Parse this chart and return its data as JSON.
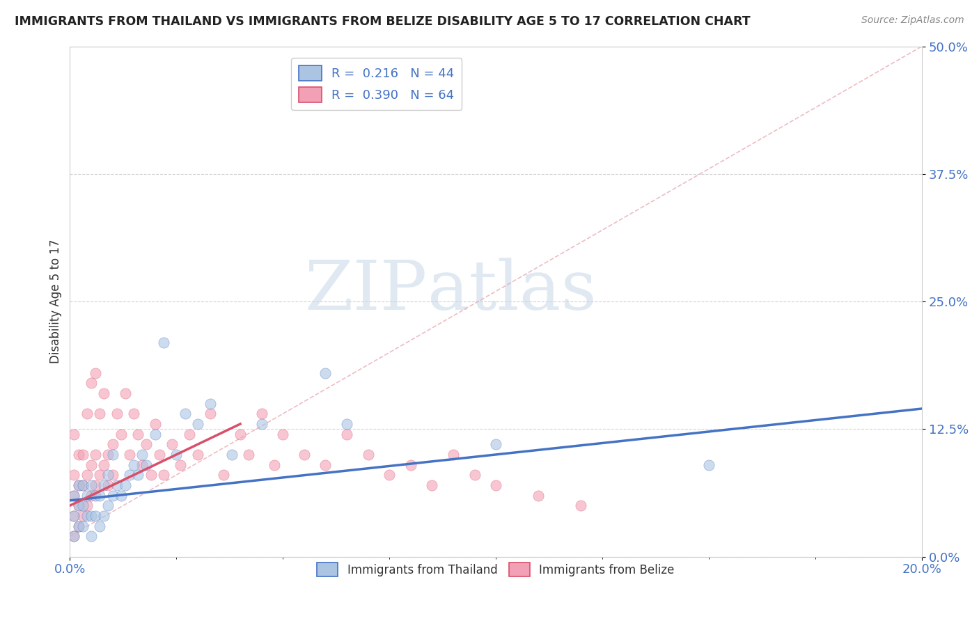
{
  "title": "IMMIGRANTS FROM THAILAND VS IMMIGRANTS FROM BELIZE DISABILITY AGE 5 TO 17 CORRELATION CHART",
  "source": "Source: ZipAtlas.com",
  "ylabel": "Disability Age 5 to 17",
  "xlim": [
    0.0,
    0.2
  ],
  "ylim": [
    0.0,
    0.5
  ],
  "ytick_labels": [
    "0.0%",
    "12.5%",
    "25.0%",
    "37.5%",
    "50.0%"
  ],
  "ytick_vals": [
    0.0,
    0.125,
    0.25,
    0.375,
    0.5
  ],
  "xtick_labels_shown": [
    "0.0%",
    "20.0%"
  ],
  "xtick_vals_shown": [
    0.0,
    0.2
  ],
  "legend_line1": "R =  0.216   N = 44",
  "legend_line2": "R =  0.390   N = 64",
  "color_thailand": "#aac4e2",
  "color_belize": "#f2a0b5",
  "line_color_thailand": "#4472c4",
  "line_color_belize": "#d94f6a",
  "watermark_zip": "ZIP",
  "watermark_atlas": "atlas",
  "grid_color": "#cccccc",
  "bg_color": "#ffffff",
  "thailand_pts_x": [
    0.001,
    0.001,
    0.001,
    0.002,
    0.002,
    0.002,
    0.003,
    0.003,
    0.003,
    0.004,
    0.004,
    0.005,
    0.005,
    0.005,
    0.006,
    0.006,
    0.007,
    0.007,
    0.008,
    0.008,
    0.009,
    0.009,
    0.01,
    0.01,
    0.011,
    0.012,
    0.013,
    0.014,
    0.015,
    0.016,
    0.017,
    0.018,
    0.02,
    0.022,
    0.025,
    0.027,
    0.03,
    0.033,
    0.038,
    0.045,
    0.06,
    0.065,
    0.1,
    0.15
  ],
  "thailand_pts_y": [
    0.02,
    0.04,
    0.06,
    0.03,
    0.05,
    0.07,
    0.03,
    0.05,
    0.07,
    0.04,
    0.06,
    0.02,
    0.04,
    0.07,
    0.04,
    0.06,
    0.03,
    0.06,
    0.04,
    0.07,
    0.05,
    0.08,
    0.06,
    0.1,
    0.07,
    0.06,
    0.07,
    0.08,
    0.09,
    0.08,
    0.1,
    0.09,
    0.12,
    0.21,
    0.1,
    0.14,
    0.13,
    0.15,
    0.1,
    0.13,
    0.18,
    0.13,
    0.11,
    0.09
  ],
  "belize_pts_x": [
    0.001,
    0.001,
    0.001,
    0.001,
    0.001,
    0.002,
    0.002,
    0.002,
    0.002,
    0.003,
    0.003,
    0.003,
    0.004,
    0.004,
    0.004,
    0.005,
    0.005,
    0.005,
    0.006,
    0.006,
    0.006,
    0.007,
    0.007,
    0.008,
    0.008,
    0.009,
    0.009,
    0.01,
    0.01,
    0.011,
    0.012,
    0.013,
    0.014,
    0.015,
    0.016,
    0.017,
    0.018,
    0.019,
    0.02,
    0.021,
    0.022,
    0.024,
    0.026,
    0.028,
    0.03,
    0.033,
    0.036,
    0.04,
    0.042,
    0.045,
    0.048,
    0.05,
    0.055,
    0.06,
    0.065,
    0.07,
    0.075,
    0.08,
    0.085,
    0.09,
    0.095,
    0.1,
    0.11,
    0.12
  ],
  "belize_pts_y": [
    0.02,
    0.04,
    0.06,
    0.08,
    0.12,
    0.03,
    0.05,
    0.07,
    0.1,
    0.04,
    0.07,
    0.1,
    0.05,
    0.08,
    0.14,
    0.06,
    0.09,
    0.17,
    0.07,
    0.1,
    0.18,
    0.08,
    0.14,
    0.09,
    0.16,
    0.1,
    0.07,
    0.11,
    0.08,
    0.14,
    0.12,
    0.16,
    0.1,
    0.14,
    0.12,
    0.09,
    0.11,
    0.08,
    0.13,
    0.1,
    0.08,
    0.11,
    0.09,
    0.12,
    0.1,
    0.14,
    0.08,
    0.12,
    0.1,
    0.14,
    0.09,
    0.12,
    0.1,
    0.09,
    0.12,
    0.1,
    0.08,
    0.09,
    0.07,
    0.1,
    0.08,
    0.07,
    0.06,
    0.05
  ]
}
